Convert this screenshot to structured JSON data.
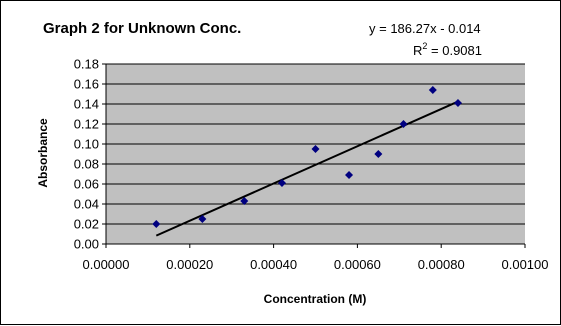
{
  "chart_data": {
    "type": "scatter",
    "title": "Graph 2 for Unknown Conc.",
    "xlabel": "Concentration (M)",
    "ylabel": "Absorbance",
    "xlim": [
      0,
      0.001
    ],
    "ylim": [
      0,
      0.18
    ],
    "x_ticks": [
      "0.00000",
      "0.00020",
      "0.00040",
      "0.00060",
      "0.00080",
      "0.00100"
    ],
    "y_ticks": [
      "0.00",
      "0.02",
      "0.04",
      "0.06",
      "0.08",
      "0.10",
      "0.12",
      "0.14",
      "0.16",
      "0.18"
    ],
    "grid": "horizontal",
    "plot_background": "#c0c0c0",
    "marker_color": "#000080",
    "trendline": {
      "equation": "y = 186.27x - 0.014",
      "r2_label": "R",
      "r2_sup": "2",
      "r2_value": " = 0.9081",
      "slope": 186.27,
      "intercept": -0.014,
      "x_range": [
        0.00012,
        0.00084
      ]
    },
    "points": [
      {
        "x": 0.00012,
        "y": 0.02
      },
      {
        "x": 0.00023,
        "y": 0.025
      },
      {
        "x": 0.00033,
        "y": 0.043
      },
      {
        "x": 0.00042,
        "y": 0.061
      },
      {
        "x": 0.0005,
        "y": 0.095
      },
      {
        "x": 0.00058,
        "y": 0.069
      },
      {
        "x": 0.00065,
        "y": 0.09
      },
      {
        "x": 0.00071,
        "y": 0.12
      },
      {
        "x": 0.00078,
        "y": 0.154
      },
      {
        "x": 0.00084,
        "y": 0.141
      }
    ]
  }
}
